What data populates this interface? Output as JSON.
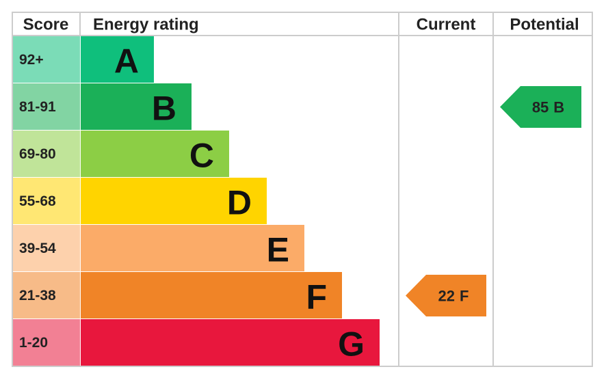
{
  "header": {
    "score": "Score",
    "energy_rating": "Energy rating",
    "current": "Current",
    "potential": "Potential"
  },
  "bands": [
    {
      "score": "92+",
      "letter": "A",
      "color": "#0fbf7c"
    },
    {
      "score": "81-91",
      "letter": "B",
      "color": "#1bb058"
    },
    {
      "score": "69-80",
      "letter": "C",
      "color": "#8cce45"
    },
    {
      "score": "55-68",
      "letter": "D",
      "color": "#ffd400"
    },
    {
      "score": "39-54",
      "letter": "E",
      "color": "#fbab68"
    },
    {
      "score": "21-38",
      "letter": "F",
      "color": "#f08427"
    },
    {
      "score": "1-20",
      "letter": "G",
      "color": "#e8173d"
    }
  ],
  "current": {
    "score": 22,
    "rating": "F",
    "color": "#f08427"
  },
  "potential": {
    "score": 85,
    "rating": "B",
    "color": "#1bb058"
  }
}
